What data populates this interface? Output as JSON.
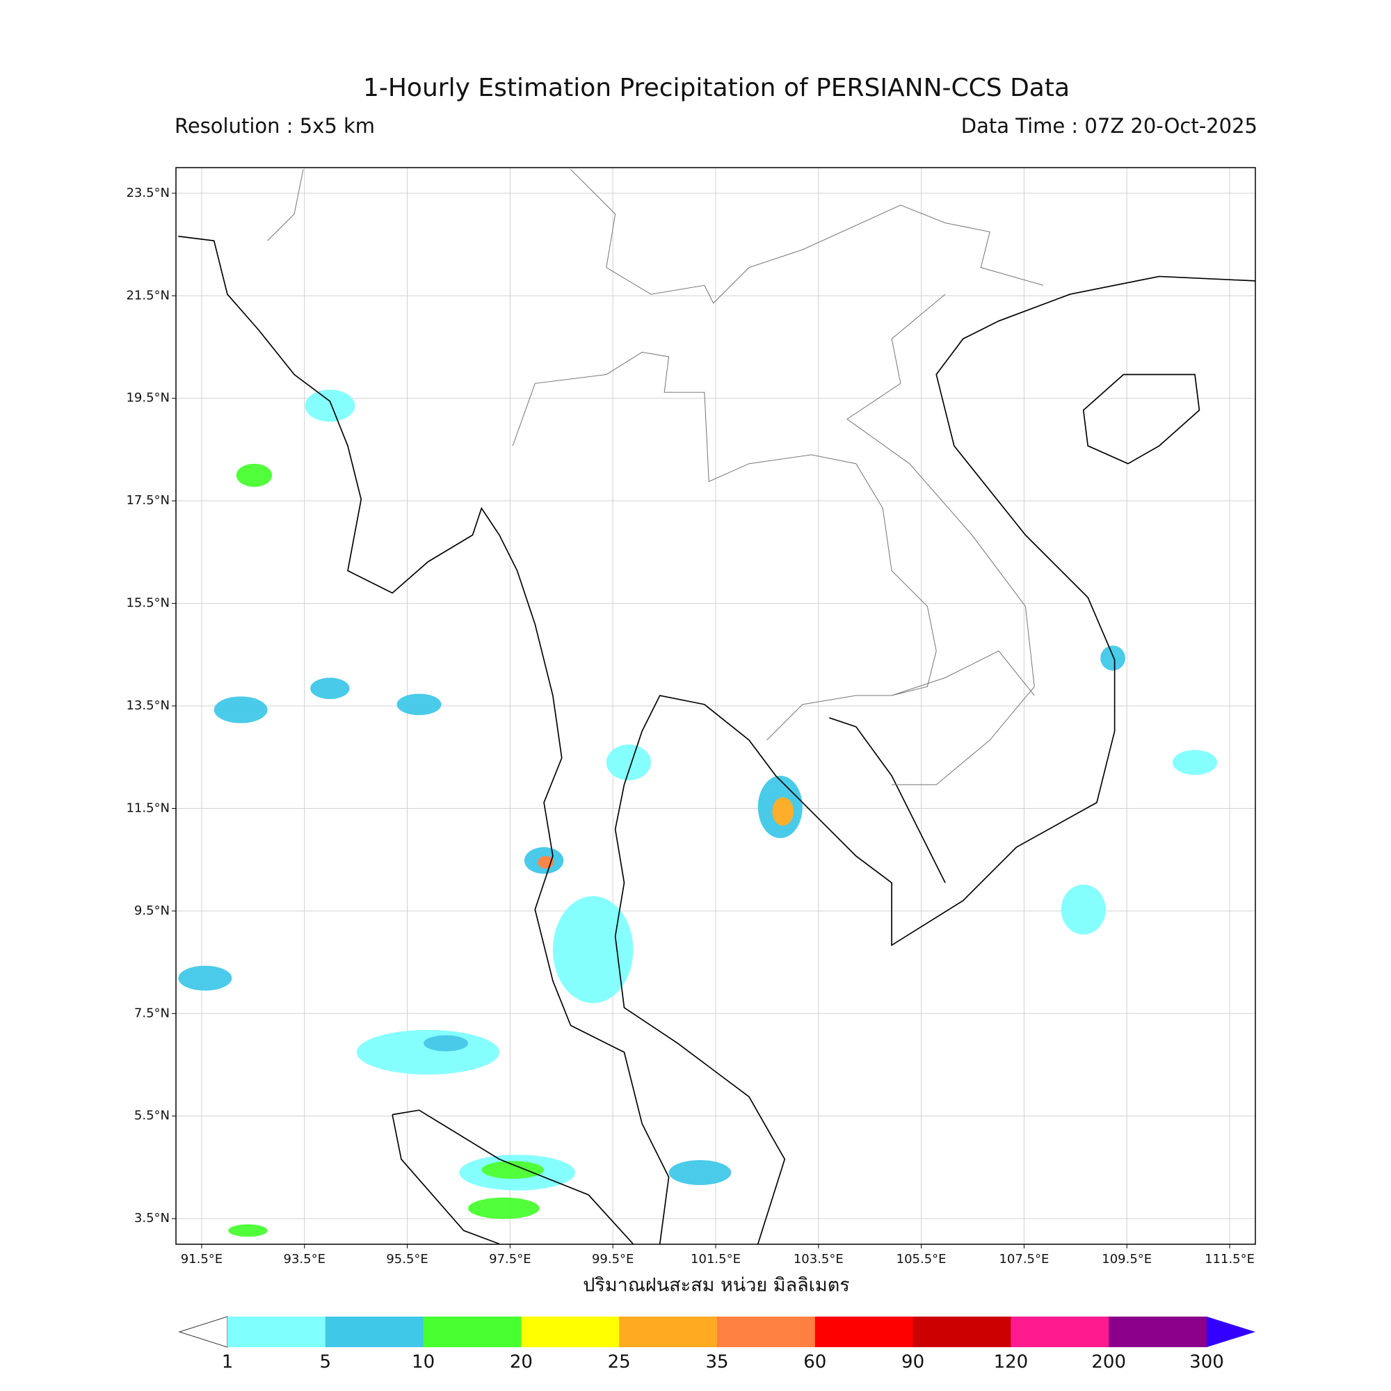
{
  "title": "1-Hourly Estimation Precipitation of PERSIANN-CCS Data",
  "resolution": "Resolution : 5x5 km",
  "data_time": "Data Time : 07Z 20-Oct-2025",
  "map": {
    "xlim": [
      91,
      112
    ],
    "ylim": [
      3,
      24
    ],
    "xticks": [
      {
        "value": 91.5,
        "label": "91.5°E"
      },
      {
        "value": 93.5,
        "label": "93.5°E"
      },
      {
        "value": 95.5,
        "label": "95.5°E"
      },
      {
        "value": 97.5,
        "label": "97.5°E"
      },
      {
        "value": 99.5,
        "label": "99.5°E"
      },
      {
        "value": 101.5,
        "label": "101.5°E"
      },
      {
        "value": 103.5,
        "label": "103.5°E"
      },
      {
        "value": 105.5,
        "label": "105.5°E"
      },
      {
        "value": 107.5,
        "label": "107.5°E"
      },
      {
        "value": 109.5,
        "label": "109.5°E"
      },
      {
        "value": 111.5,
        "label": "111.5°E"
      }
    ],
    "yticks": [
      {
        "value": 23.5,
        "label": "23.5°N"
      },
      {
        "value": 21.5,
        "label": "21.5°N"
      },
      {
        "value": 19.5,
        "label": "19.5°N"
      },
      {
        "value": 17.5,
        "label": "17.5°N"
      },
      {
        "value": 15.5,
        "label": "15.5°N"
      },
      {
        "value": 13.5,
        "label": "13.5°N"
      },
      {
        "value": 11.5,
        "label": "11.5°N"
      },
      {
        "value": 9.5,
        "label": "9.5°N"
      },
      {
        "value": 7.5,
        "label": "7.5°N"
      },
      {
        "value": 5.5,
        "label": "5.5°N"
      },
      {
        "value": 3.5,
        "label": "3.5°N"
      }
    ],
    "grid": true
  },
  "colorbar": {
    "label": "ปริมาณฝนสะสม หน่วย มิลลิเมตร",
    "levels": [
      1,
      5,
      10,
      20,
      25,
      35,
      60,
      90,
      120,
      200,
      300
    ],
    "colors": [
      "#80ffff",
      "#40c8e8",
      "#48ff30",
      "#ffff00",
      "#ffaa20",
      "#ff8040",
      "#ff0000",
      "#cc0000",
      "#ff1a90",
      "#8b008b"
    ],
    "over_color": "#3300ff"
  }
}
